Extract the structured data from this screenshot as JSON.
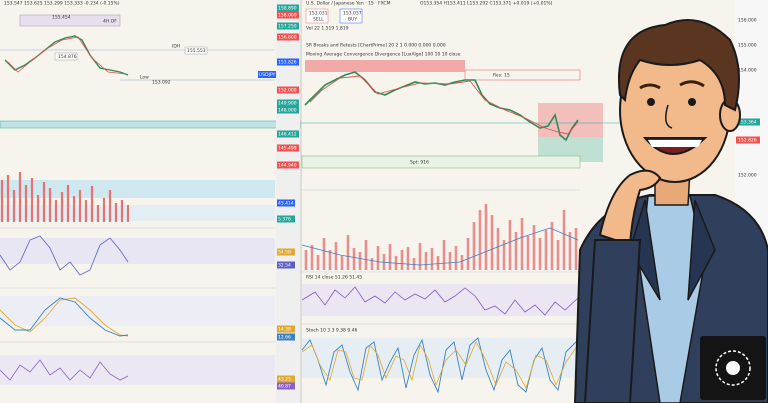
{
  "left_panel": {
    "header": "153.547 153.625 153.299 153.333 -0.234 (-0.15%)",
    "box_label": "4H OF",
    "high_price": "155.454",
    "mid_price": "154.876",
    "idh": "IDH",
    "idh_price": "155.553",
    "low": "Low",
    "low_price": "153.092",
    "symbol": "USDJPY",
    "axis": [
      "158.890",
      "158.000",
      "157.250",
      "156.800",
      "153.826",
      "152.000",
      "149.900",
      "148.000",
      "146.412",
      "145.499",
      "144.940"
    ],
    "indicator_labels": [
      "45.414",
      "5.376",
      "54.58",
      "32.54",
      "14.38",
      "12.66",
      "43.23",
      "40.87"
    ]
  },
  "right_panel": {
    "title": "U.S. Dollar / Japanese Yen · 15 · FXCM",
    "ohlc": "O153.354 H153.411 L153.292 C153.371 +0.019 (+0.01%)",
    "sell_price": "153.031",
    "sell": "SELL",
    "buy_price": "153.037",
    "buy": "BUY",
    "volume": "Vol 22  1.519  1.819",
    "sr": "SR Breaks and Retests [ChartPrime] 20 2 1  0.000  0.000  0.000",
    "macd": "Moving Average Convergence Divergence [LuxAlgo] 100 10 10 close",
    "res_label": "Res: 15",
    "sup_label": "Spt: 916",
    "rsi": "RSI 14 close  51.26  51.45",
    "stoch": "Stoch 10 3 3  9.38  9.46"
  },
  "right_axis": [
    "156.000",
    "155.000",
    "154.000",
    "153.364",
    "152.826",
    "152.000"
  ]
}
